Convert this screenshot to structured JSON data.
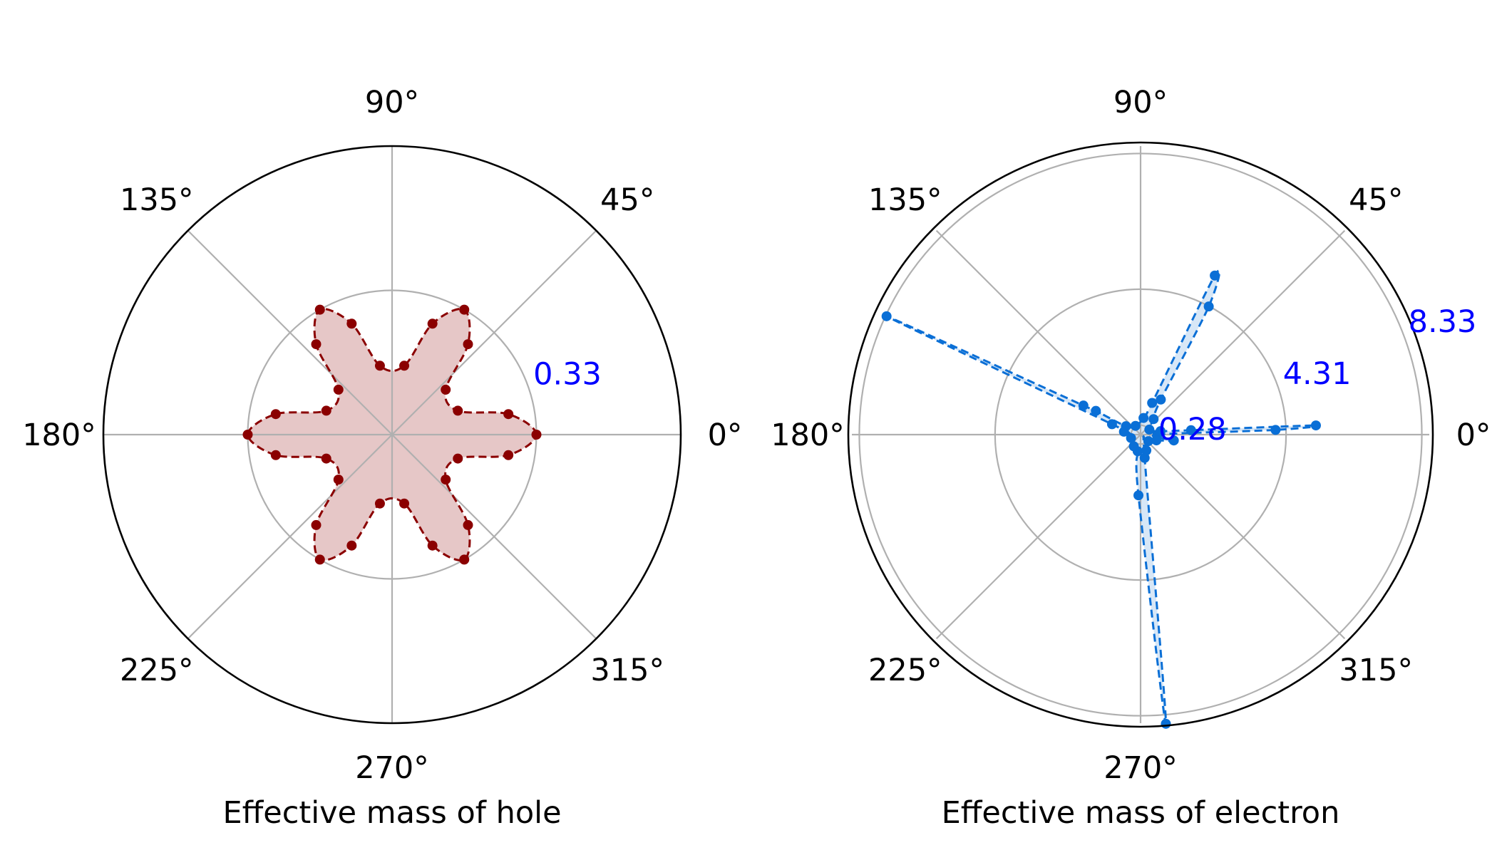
{
  "chart_data": [
    {
      "type": "polar",
      "xlabel": "Effective mass of hole",
      "theta_tick_labels": [
        "0°",
        "45°",
        "90°",
        "135°",
        "180°",
        "225°",
        "270°",
        "315°"
      ],
      "r_max": 0.66,
      "r_ticks": [
        0.33
      ],
      "r_tick_labels": [
        "0.33"
      ],
      "grid": true,
      "color": "#8b0000",
      "fill_color": "#8b0000",
      "line_style": "dashed",
      "series": [
        {
          "points": [
            {
              "theta": 0,
              "r": 0.33
            },
            {
              "theta": 10,
              "r": 0.27
            },
            {
              "theta": 20,
              "r": 0.16
            },
            {
              "theta": 40,
              "r": 0.16
            },
            {
              "theta": 50,
              "r": 0.27
            },
            {
              "theta": 60,
              "r": 0.33
            },
            {
              "theta": 70,
              "r": 0.27
            },
            {
              "theta": 80,
              "r": 0.16
            },
            {
              "theta": 100,
              "r": 0.16
            },
            {
              "theta": 110,
              "r": 0.27
            },
            {
              "theta": 120,
              "r": 0.33
            },
            {
              "theta": 130,
              "r": 0.27
            },
            {
              "theta": 140,
              "r": 0.16
            },
            {
              "theta": 160,
              "r": 0.16
            },
            {
              "theta": 170,
              "r": 0.27
            },
            {
              "theta": 180,
              "r": 0.33
            },
            {
              "theta": 190,
              "r": 0.27
            },
            {
              "theta": 200,
              "r": 0.16
            },
            {
              "theta": 220,
              "r": 0.16
            },
            {
              "theta": 230,
              "r": 0.27
            },
            {
              "theta": 240,
              "r": 0.33
            },
            {
              "theta": 250,
              "r": 0.27
            },
            {
              "theta": 260,
              "r": 0.16
            },
            {
              "theta": 280,
              "r": 0.16
            },
            {
              "theta": 290,
              "r": 0.27
            },
            {
              "theta": 300,
              "r": 0.33
            },
            {
              "theta": 310,
              "r": 0.27
            },
            {
              "theta": 320,
              "r": 0.16
            },
            {
              "theta": 340,
              "r": 0.16
            },
            {
              "theta": 350,
              "r": 0.27
            }
          ]
        }
      ]
    },
    {
      "type": "polar",
      "xlabel": "Effective mass of electron",
      "theta_tick_labels": [
        "0°",
        "45°",
        "90°",
        "135°",
        "180°",
        "225°",
        "270°",
        "315°"
      ],
      "r_max": 8.55,
      "r_ticks": [
        0.28,
        4.31,
        8.33
      ],
      "r_tick_labels": [
        "0.28",
        "4.31",
        "8.33"
      ],
      "grid": true,
      "color": "#0a6fd6",
      "fill_color": "#4a90d9",
      "line_style": "dashed",
      "series": [
        {
          "points": [
            {
              "theta": 0,
              "r": 0.5
            },
            {
              "theta": 2,
              "r": 4.0
            },
            {
              "theta": 3,
              "r": 5.2
            },
            {
              "theta": 5,
              "r": 1.5
            },
            {
              "theta": 10,
              "r": 0.6
            },
            {
              "theta": 30,
              "r": 0.3
            },
            {
              "theta": 50,
              "r": 0.6
            },
            {
              "theta": 60,
              "r": 1.2
            },
            {
              "theta": 62,
              "r": 4.3
            },
            {
              "theta": 65,
              "r": 5.2
            },
            {
              "theta": 70,
              "r": 1.0
            },
            {
              "theta": 80,
              "r": 0.5
            },
            {
              "theta": 120,
              "r": 0.3
            },
            {
              "theta": 150,
              "r": 0.5
            },
            {
              "theta": 152,
              "r": 1.5
            },
            {
              "theta": 153,
              "r": 1.9
            },
            {
              "theta": 155,
              "r": 8.3
            },
            {
              "theta": 160,
              "r": 0.9
            },
            {
              "theta": 170,
              "r": 0.5
            },
            {
              "theta": 200,
              "r": 0.3
            },
            {
              "theta": 240,
              "r": 0.4
            },
            {
              "theta": 260,
              "r": 0.5
            },
            {
              "theta": 268,
              "r": 1.8
            },
            {
              "theta": 275,
              "r": 8.6
            },
            {
              "theta": 280,
              "r": 0.7
            },
            {
              "theta": 290,
              "r": 0.5
            },
            {
              "theta": 320,
              "r": 0.3
            },
            {
              "theta": 340,
              "r": 0.5
            },
            {
              "theta": 350,
              "r": 1.0
            }
          ]
        }
      ]
    }
  ]
}
